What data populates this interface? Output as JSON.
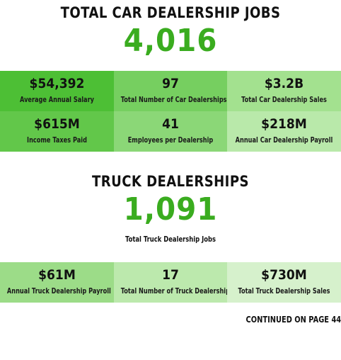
{
  "car": {
    "title": "TOTAL CAR DEALERSHIP JOBS",
    "total_jobs": "4,016",
    "stats": [
      {
        "value": "$54,392",
        "label": "Average Annual Salary",
        "color": "#4dbf35"
      },
      {
        "value": "97",
        "label": "Total Number of Car Dealerships",
        "color": "#76cf60"
      },
      {
        "value": "$3.2B",
        "label": "Total Car Dealership Sales",
        "color": "#a3e18f"
      },
      {
        "value": "$615M",
        "label": "Income Taxes Paid",
        "color": "#62c74a"
      },
      {
        "value": "41",
        "label": "Employees per Dealership",
        "color": "#8bd777"
      },
      {
        "value": "$218M",
        "label": "Annual Car Dealership Payroll",
        "color": "#b9e9aa"
      }
    ]
  },
  "truck": {
    "title": "TRUCK DEALERSHIPS",
    "total_jobs": "1,091",
    "total_jobs_label": "Total Truck Dealership Jobs",
    "stats": [
      {
        "value": "$61M",
        "label": "Annual Truck Dealership Payroll",
        "color": "#9cdc88"
      },
      {
        "value": "17",
        "label": "Total Number of Truck Dealerships",
        "color": "#bce9ad"
      },
      {
        "value": "$730M",
        "label": "Total Truck Dealership Sales",
        "color": "#d6f1cc"
      }
    ]
  },
  "footer": {
    "continued": "CONTINUED ON PAGE 44"
  }
}
